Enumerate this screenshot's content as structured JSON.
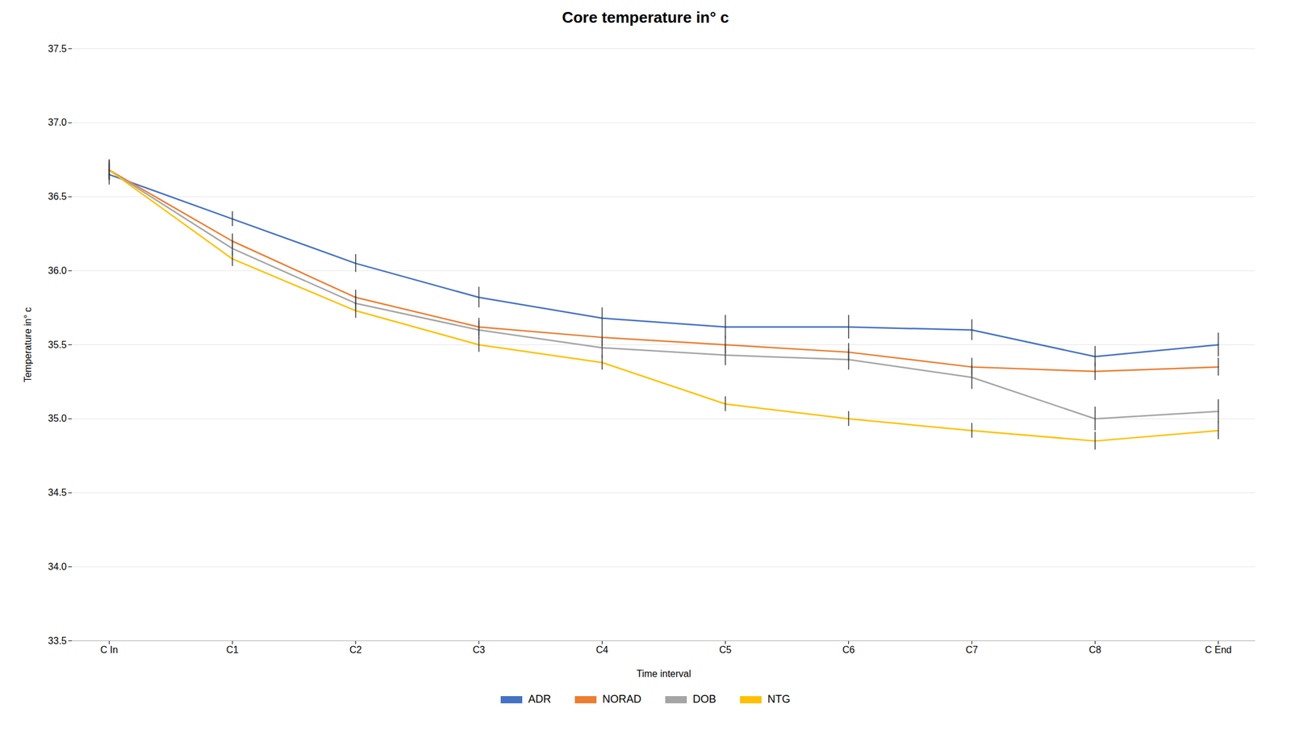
{
  "chart_data": {
    "type": "line",
    "title": "Core temperature in° c",
    "x_label": "Time interval",
    "y_label": "Temperature in° c",
    "categories": [
      "C In",
      "C1",
      "C2",
      "C3",
      "C4",
      "C5",
      "C6",
      "C7",
      "C8",
      "C End"
    ],
    "series": [
      {
        "name": "ADR",
        "color": "#4472C4",
        "values": [
          36.65,
          36.35,
          36.05,
          35.82,
          35.68,
          35.62,
          35.62,
          35.6,
          35.42,
          35.5
        ],
        "errors": [
          0.07,
          0.05,
          0.06,
          0.07,
          0.07,
          0.08,
          0.08,
          0.07,
          0.07,
          0.08
        ]
      },
      {
        "name": "NORAD",
        "color": "#ED7D31",
        "values": [
          36.68,
          36.2,
          35.82,
          35.62,
          35.55,
          35.5,
          35.45,
          35.35,
          35.32,
          35.35
        ],
        "errors": [
          0.07,
          0.05,
          0.05,
          0.06,
          0.06,
          0.06,
          0.06,
          0.06,
          0.06,
          0.06
        ]
      },
      {
        "name": "DOB",
        "color": "#A5A5A5",
        "values": [
          36.68,
          36.15,
          35.78,
          35.6,
          35.48,
          35.43,
          35.4,
          35.28,
          35.0,
          35.05
        ],
        "errors": [
          0.07,
          0.05,
          0.05,
          0.06,
          0.07,
          0.07,
          0.07,
          0.08,
          0.08,
          0.08
        ]
      },
      {
        "name": "NTG",
        "color": "#FFC000",
        "values": [
          36.68,
          36.08,
          35.73,
          35.5,
          35.38,
          35.1,
          35.0,
          34.92,
          34.85,
          34.92
        ],
        "errors": [
          0.06,
          0.05,
          0.05,
          0.05,
          0.05,
          0.05,
          0.05,
          0.05,
          0.06,
          0.06
        ]
      }
    ],
    "ylim": [
      33.5,
      37.5
    ],
    "yticks": [
      33.5,
      {
        "value": 34,
        "label": "34.0"
      },
      34.5,
      {
        "value": 35,
        "label": "35.0"
      },
      35.5,
      {
        "value": 36,
        "label": "36.0"
      },
      36.5,
      {
        "value": 37,
        "label": "37.0"
      },
      37.5
    ],
    "grid": true,
    "legend": "bottom"
  }
}
